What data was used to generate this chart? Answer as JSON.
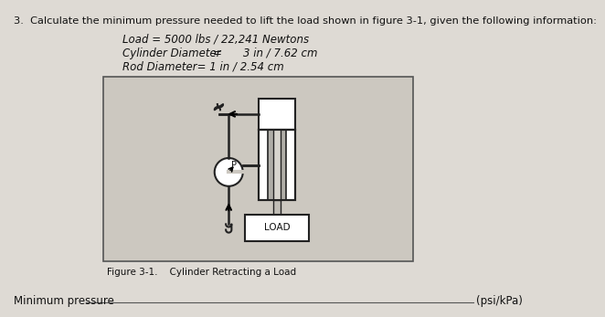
{
  "title_line": "3.  Calculate the minimum pressure needed to lift the load shown in figure 3-1, given the following information:",
  "line1": "Load = 5000 lbs / 22,241 Newtons",
  "line2_part1": "Cylinder Diameter",
  "line2_eq": "=",
  "line2_part2": "3 in / 7.62 cm",
  "line3": "Rod Diameter= 1 in / 2.54 cm",
  "figure_label": "Figure 3-1.    Cylinder Retracting a Load",
  "bottom_label": "Minimum pressure",
  "bottom_unit": "(psi/kPa)",
  "page_bg": "#dedad4",
  "diagram_box_bg": "#ccc8c0",
  "diagram_box_edge": "#444444",
  "text_color": "#111111"
}
